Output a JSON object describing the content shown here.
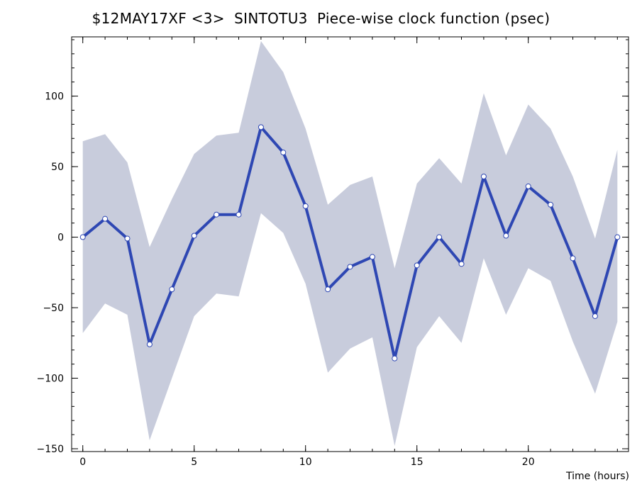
{
  "chart_data": {
    "type": "line",
    "title": "$12MAY17XF <3>  SINTOTU3  Piece-wise clock function (psec)",
    "xlabel": "Time (hours)",
    "ylabel": "",
    "xlim": [
      -0.5,
      24.5
    ],
    "ylim": [
      -152,
      142
    ],
    "x_ticks": [
      0,
      5,
      10,
      15,
      20
    ],
    "y_ticks": [
      -150,
      -100,
      -50,
      0,
      50,
      100
    ],
    "x_minor_step": 1,
    "y_minor_step": 10,
    "grid": false,
    "series": [
      {
        "x": [
          0,
          1,
          2,
          3,
          4,
          5,
          6,
          7,
          8,
          9,
          10,
          11,
          12,
          13,
          14,
          15,
          16,
          17,
          18,
          19,
          20,
          21,
          22,
          23,
          24
        ],
        "values": [
          0,
          13,
          -1,
          -76,
          -37,
          1,
          16,
          16,
          78,
          60,
          22,
          -37,
          -21,
          -14,
          -86,
          -20,
          0,
          -19,
          43,
          1,
          36,
          23,
          -15,
          -56,
          0
        ],
        "band_upper": [
          68,
          73,
          53,
          -7,
          27,
          59,
          72,
          74,
          139,
          117,
          77,
          23,
          37,
          43,
          -22,
          38,
          56,
          38,
          102,
          58,
          94,
          77,
          43,
          -1,
          62
        ],
        "band_lower": [
          -68,
          -47,
          -55,
          -144,
          -100,
          -56,
          -40,
          -42,
          17,
          3,
          -33,
          -96,
          -79,
          -71,
          -148,
          -78,
          -56,
          -75,
          -15,
          -55,
          -22,
          -31,
          -74,
          -111,
          -60
        ]
      }
    ],
    "colors": {
      "line": "#2e47b3",
      "band": "#c8ccdc",
      "marker_fill": "#ffffff",
      "axes": "#000000"
    }
  }
}
